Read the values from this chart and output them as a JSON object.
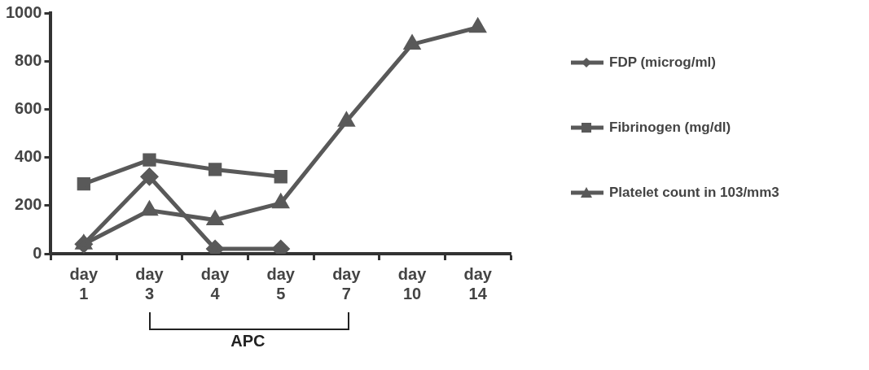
{
  "chart_data": {
    "type": "line",
    "categories": [
      "day 1",
      "day 3",
      "day 4",
      "day 5",
      "day 7",
      "day 10",
      "day 14"
    ],
    "series": [
      {
        "name": "FDP (microg/ml)",
        "color": "#595959",
        "marker": "diamond",
        "values": [
          40,
          320,
          20,
          20,
          null,
          null,
          null
        ]
      },
      {
        "name": "Fibrinogen (mg/dl)",
        "color": "#595959",
        "marker": "square",
        "values": [
          290,
          390,
          350,
          320,
          null,
          null,
          null
        ]
      },
      {
        "name": "Platelet count in 103/mm3",
        "color": "#595959",
        "marker": "triangle",
        "values": [
          40,
          180,
          140,
          210,
          550,
          870,
          940
        ]
      }
    ],
    "ylim": [
      0,
      1000
    ],
    "yticks": [
      0,
      200,
      400,
      600,
      800,
      1000
    ],
    "grid": false,
    "legend": "right",
    "line_style": "solid",
    "annotations": [
      "APC"
    ]
  }
}
